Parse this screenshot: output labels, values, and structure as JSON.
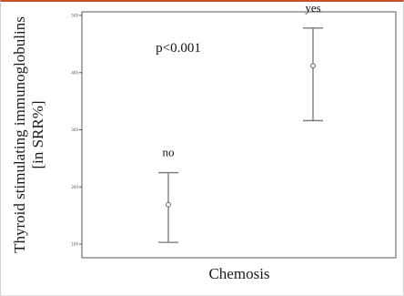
{
  "chart_data": {
    "type": "errorbar",
    "title": "",
    "xlabel": "Chemosis",
    "ylabel_lines": [
      "Thyroid stimulating immunoglobulins",
      "[in SRR%]"
    ],
    "ylim": [
      100,
      500
    ],
    "yticks": [
      100,
      200,
      300,
      400,
      500
    ],
    "ytick_labels": [
      "100",
      "200",
      "300",
      "400",
      "500"
    ],
    "categories": [
      "no",
      "yes"
    ],
    "series": [
      {
        "mean": [
          169,
          412
        ],
        "lower": [
          103,
          316
        ],
        "upper": [
          225,
          478
        ]
      }
    ],
    "annotations": [
      {
        "text": "p<0.001"
      }
    ],
    "grid": false,
    "colors": {
      "axis": "#555555",
      "errorbar": "#777777",
      "marker": "#666666",
      "text": "#111111"
    }
  }
}
